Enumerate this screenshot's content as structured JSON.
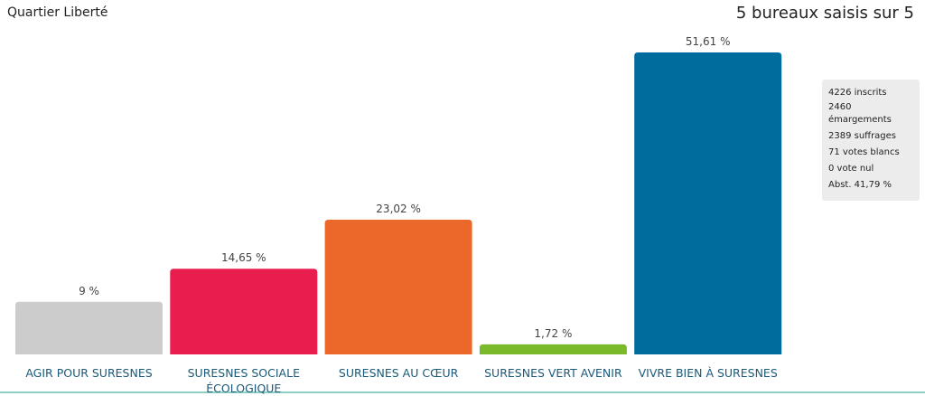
{
  "chart_data": {
    "type": "bar",
    "title": "Quartier Liberté",
    "subtitle": "5 bureaux saisis sur 5",
    "categories": [
      "AGIR POUR SURESNES",
      "SURESNES SOCIALE ÉCOLOGIQUE",
      "SURESNES AU CŒUR",
      "SURESNES VERT AVENIR",
      "VIVRE BIEN À SURESNES"
    ],
    "values": [
      9,
      14.65,
      23.02,
      1.72,
      51.61
    ],
    "value_labels": [
      "9 %",
      "14,65 %",
      "23,02 %",
      "1,72 %",
      "51,61 %"
    ],
    "colors": [
      "#cccccc",
      "#e91e4f",
      "#ec672a",
      "#7ab929",
      "#006c9e"
    ]
  },
  "stats": [
    "4226 inscrits",
    "2460 émargements",
    "2389 suffrages",
    "71 votes blancs",
    "0 vote nul",
    "Abst. 41,79 %"
  ]
}
